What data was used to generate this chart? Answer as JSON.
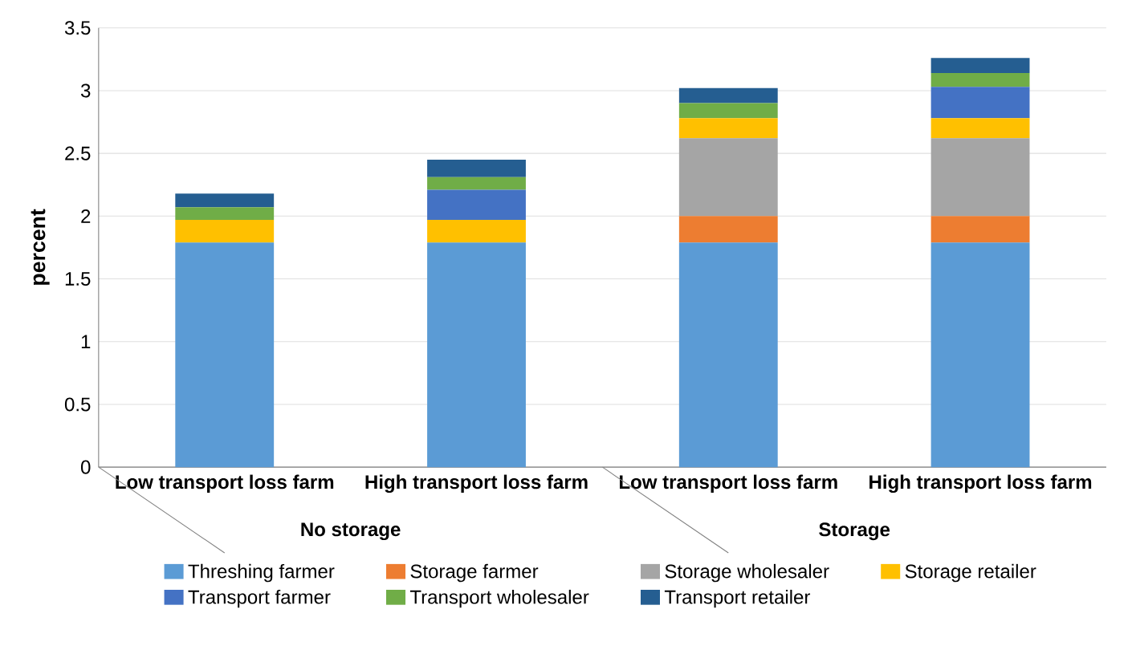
{
  "chart_data": {
    "type": "bar",
    "stacked": true,
    "ylabel": "percent",
    "categories": [
      "Low transport loss farm",
      "High transport loss farm",
      "Low transport loss farm",
      "High transport loss farm"
    ],
    "annotations": [
      "No storage",
      "Storage"
    ],
    "series": [
      {
        "name": "Threshing farmer",
        "color": "#5b9bd5",
        "values": [
          1.79,
          1.79,
          1.79,
          1.79
        ]
      },
      {
        "name": "Storage farmer",
        "color": "#ed7d31",
        "values": [
          0,
          0,
          0.21,
          0.21
        ]
      },
      {
        "name": "Storage wholesaler",
        "color": "#a5a5a5",
        "values": [
          0,
          0,
          0.62,
          0.62
        ]
      },
      {
        "name": "Storage retailer",
        "color": "#ffc000",
        "values": [
          0.18,
          0.18,
          0.16,
          0.16
        ]
      },
      {
        "name": "Transport farmer",
        "color": "#4472c4",
        "values": [
          0,
          0.24,
          0,
          0.25
        ]
      },
      {
        "name": "Transport wholesaler",
        "color": "#70ad47",
        "values": [
          0.1,
          0.1,
          0.12,
          0.11
        ]
      },
      {
        "name": "Transport retailer",
        "color": "#255e91",
        "values": [
          0.11,
          0.14,
          0.12,
          0.12
        ]
      }
    ],
    "ylim": [
      0,
      3.5
    ],
    "yticks": [
      0,
      0.5,
      1,
      1.5,
      2,
      2.5,
      3,
      3.5
    ],
    "grid": "y",
    "legend": "bottom"
  }
}
